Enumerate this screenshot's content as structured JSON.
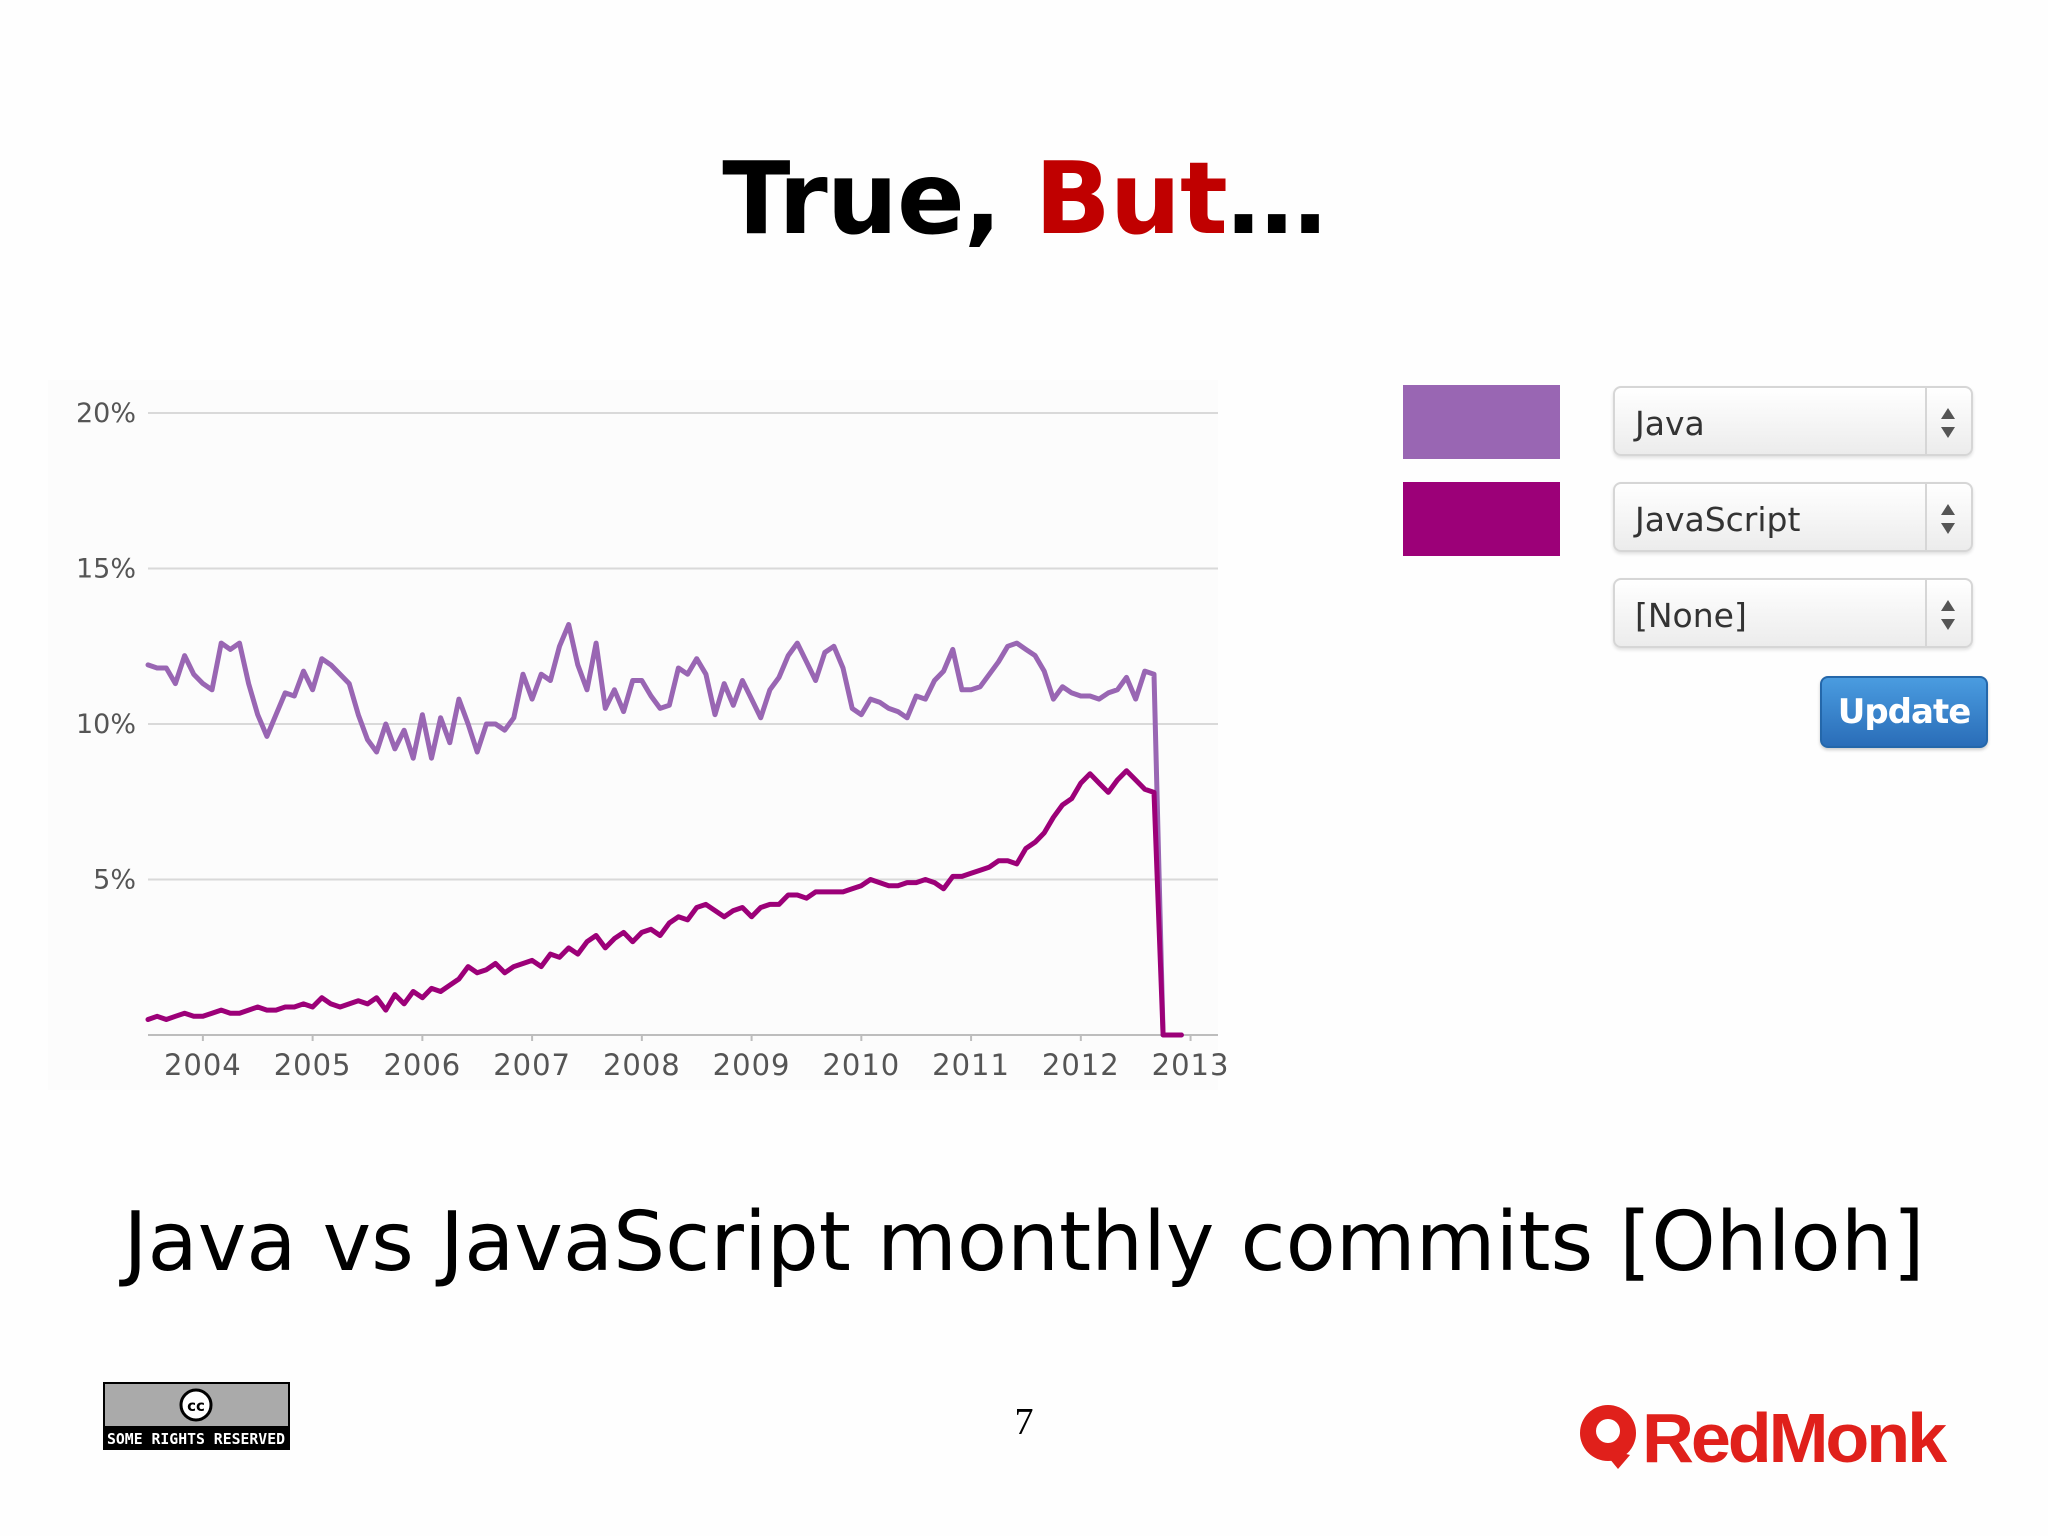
{
  "slide": {
    "title_main": "True, ",
    "title_accent": "But",
    "title_tail": "…",
    "caption": "Java vs JavaScript monthly commits [Ohloh]",
    "page_number": "7",
    "license_text": "SOME RIGHTS RESERVED",
    "logo_text": "RedMonk"
  },
  "controls": {
    "selects": [
      {
        "value": "Java",
        "swatch_color": "#9966b3"
      },
      {
        "value": "JavaScript",
        "swatch_color": "#9c0078"
      },
      {
        "value": "[None]",
        "swatch_color": null
      }
    ],
    "update_label": "Update",
    "update_color": "#2f7bc6"
  },
  "colors": {
    "title_accent": "#c00000",
    "logo": "#e0201b",
    "grid": "#d9d9d9"
  },
  "chart_data": {
    "type": "line",
    "x_start_year": 2003.5,
    "x_step_months": 1,
    "xlim": [
      2003.5,
      2013.25
    ],
    "ylim": [
      0,
      20
    ],
    "yticks": [
      "20%",
      "15%",
      "10%",
      "5%"
    ],
    "ytick_values": [
      20,
      15,
      10,
      5
    ],
    "xticks": [
      "2004",
      "2005",
      "2006",
      "2007",
      "2008",
      "2009",
      "2010",
      "2011",
      "2012",
      "2013"
    ],
    "grid": true,
    "series": [
      {
        "name": "Java",
        "color": "#9966b3",
        "values": [
          11.9,
          11.8,
          11.8,
          11.3,
          12.2,
          11.6,
          11.3,
          11.1,
          12.6,
          12.4,
          12.6,
          11.3,
          10.3,
          9.6,
          10.3,
          11.0,
          10.9,
          11.7,
          11.1,
          12.1,
          11.9,
          11.6,
          11.3,
          10.3,
          9.5,
          9.1,
          10.0,
          9.2,
          9.8,
          8.9,
          10.3,
          8.9,
          10.2,
          9.4,
          10.8,
          10.0,
          9.1,
          10.0,
          10.0,
          9.8,
          10.2,
          11.6,
          10.8,
          11.6,
          11.4,
          12.5,
          13.2,
          11.9,
          11.1,
          12.6,
          10.5,
          11.1,
          10.4,
          11.4,
          11.4,
          10.9,
          10.5,
          10.6,
          11.8,
          11.6,
          12.1,
          11.6,
          10.3,
          11.3,
          10.6,
          11.4,
          10.8,
          10.2,
          11.1,
          11.5,
          12.2,
          12.6,
          12.0,
          11.4,
          12.3,
          12.5,
          11.8,
          10.5,
          10.3,
          10.8,
          10.7,
          10.5,
          10.4,
          10.2,
          10.9,
          10.8,
          11.4,
          11.7,
          12.4,
          11.1,
          11.1,
          11.2,
          11.6,
          12.0,
          12.5,
          12.6,
          12.4,
          12.2,
          11.7,
          10.8,
          11.2,
          11.0,
          10.9,
          10.9,
          10.8,
          11.0,
          11.1,
          11.5,
          10.8,
          11.7,
          11.6,
          0.0,
          0.0,
          0.0
        ]
      },
      {
        "name": "JavaScript",
        "color": "#9c0078",
        "values": [
          0.5,
          0.6,
          0.5,
          0.6,
          0.7,
          0.6,
          0.6,
          0.7,
          0.8,
          0.7,
          0.7,
          0.8,
          0.9,
          0.8,
          0.8,
          0.9,
          0.9,
          1.0,
          0.9,
          1.2,
          1.0,
          0.9,
          1.0,
          1.1,
          1.0,
          1.2,
          0.8,
          1.3,
          1.0,
          1.4,
          1.2,
          1.5,
          1.4,
          1.6,
          1.8,
          2.2,
          2.0,
          2.1,
          2.3,
          2.0,
          2.2,
          2.3,
          2.4,
          2.2,
          2.6,
          2.5,
          2.8,
          2.6,
          3.0,
          3.2,
          2.8,
          3.1,
          3.3,
          3.0,
          3.3,
          3.4,
          3.2,
          3.6,
          3.8,
          3.7,
          4.1,
          4.2,
          4.0,
          3.8,
          4.0,
          4.1,
          3.8,
          4.1,
          4.2,
          4.2,
          4.5,
          4.5,
          4.4,
          4.6,
          4.6,
          4.6,
          4.6,
          4.7,
          4.8,
          5.0,
          4.9,
          4.8,
          4.8,
          4.9,
          4.9,
          5.0,
          4.9,
          4.7,
          5.1,
          5.1,
          5.2,
          5.3,
          5.4,
          5.6,
          5.6,
          5.5,
          6.0,
          6.2,
          6.5,
          7.0,
          7.4,
          7.6,
          8.1,
          8.4,
          8.1,
          7.8,
          8.2,
          8.5,
          8.2,
          7.9,
          7.8,
          0.0,
          0.0,
          0.0
        ]
      }
    ]
  }
}
